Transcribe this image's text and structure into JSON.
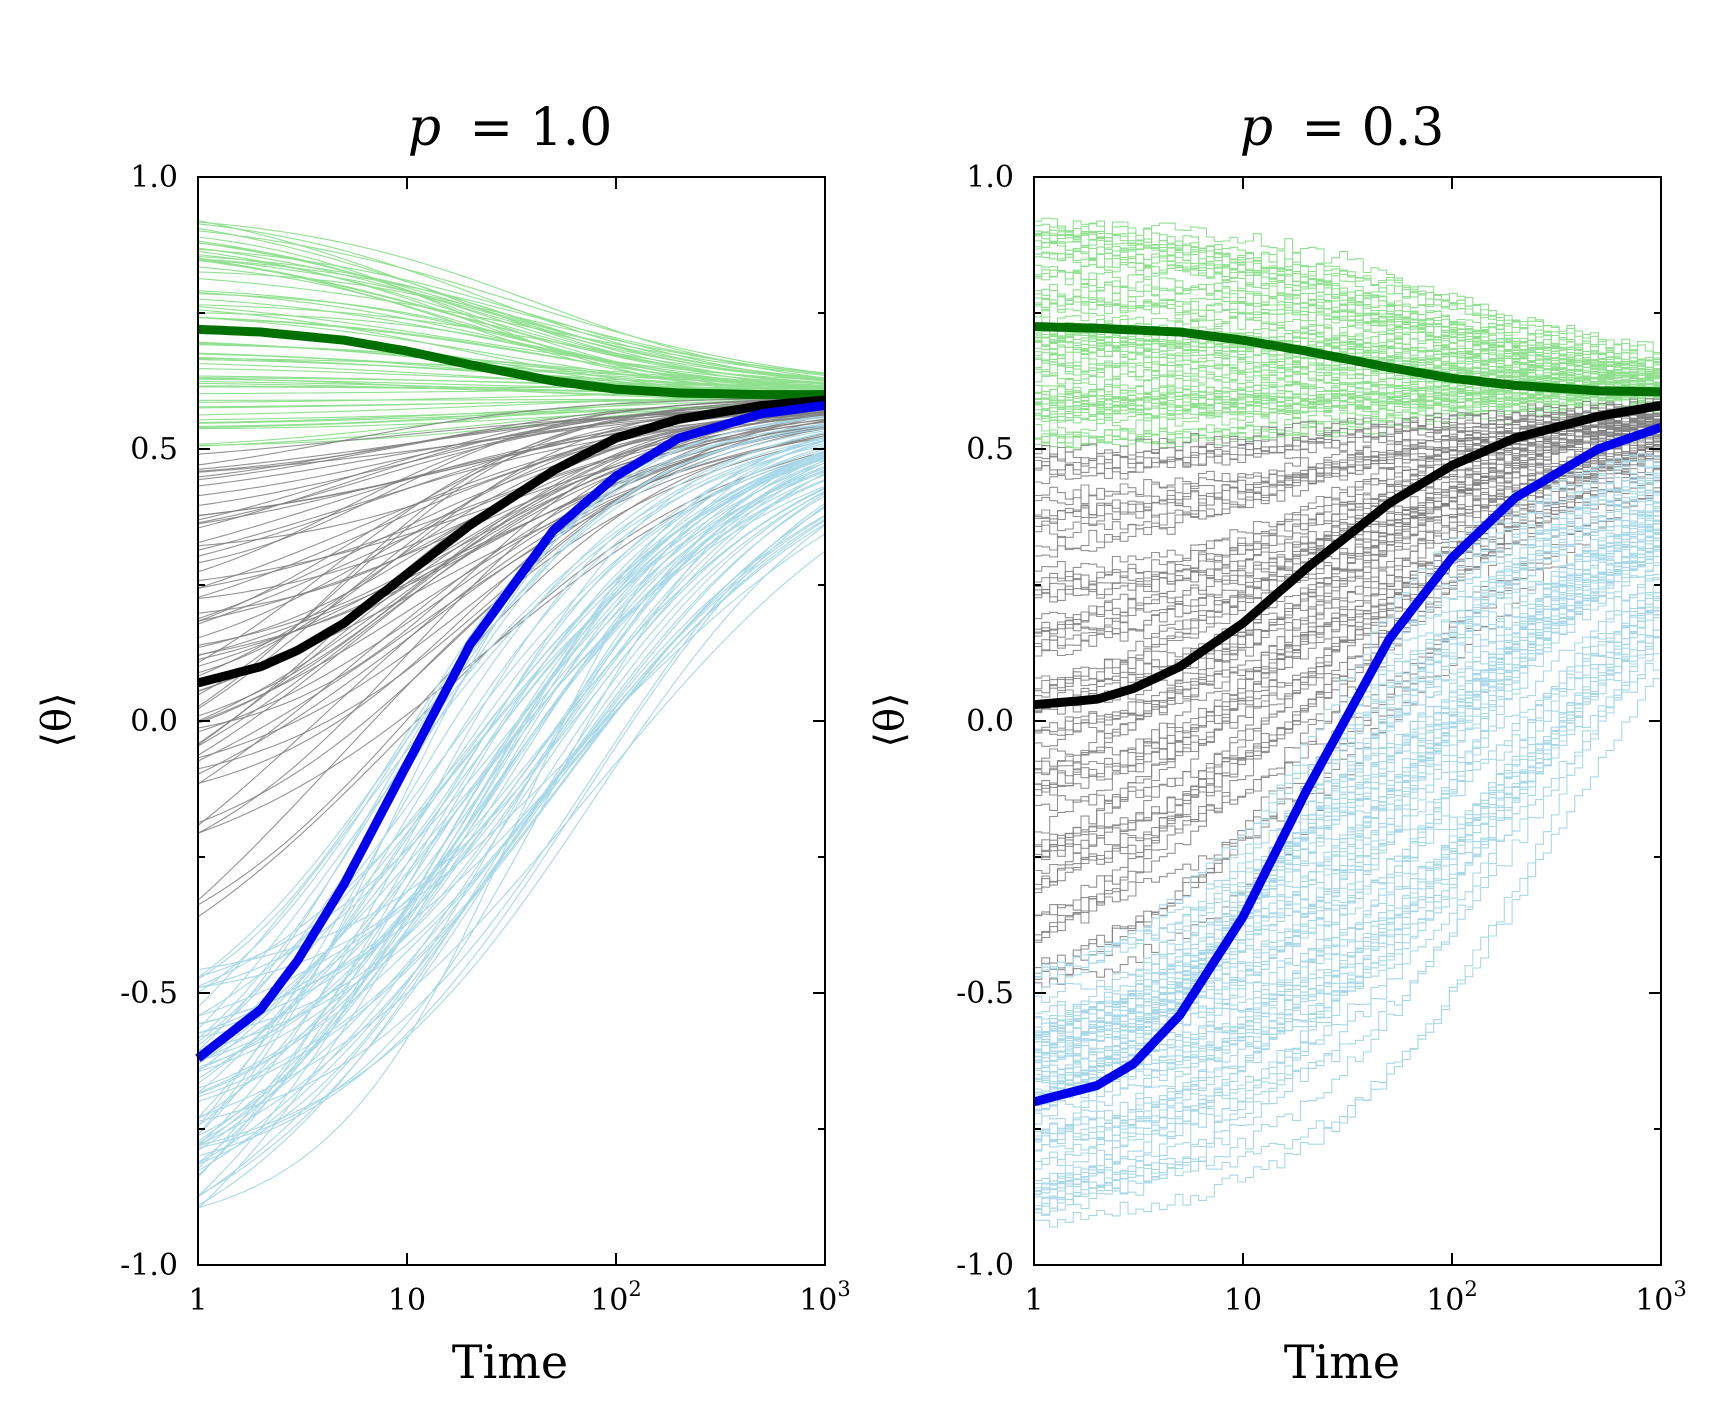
{
  "chart_data": [
    {
      "type": "line",
      "title": "p = 1.0",
      "title_var": "p",
      "title_value": "= 1.0",
      "xlabel": "Time",
      "ylabel": "⟨θ⟩",
      "xscale": "log",
      "xlim": [
        1,
        1000
      ],
      "ylim": [
        -1.0,
        1.0
      ],
      "xticks": [
        {
          "value": 1,
          "label": "1",
          "sup": ""
        },
        {
          "value": 10,
          "label": "10",
          "sup": ""
        },
        {
          "value": 100,
          "label": "10",
          "sup": "2"
        },
        {
          "value": 1000,
          "label": "10",
          "sup": "3"
        }
      ],
      "yticks": [
        {
          "value": 1.0,
          "label": "1.0"
        },
        {
          "value": 0.5,
          "label": "0.5"
        },
        {
          "value": 0.0,
          "label": "0.0"
        },
        {
          "value": -0.5,
          "label": "-0.5"
        },
        {
          "value": -1.0,
          "label": "-1.0"
        }
      ],
      "series": [
        {
          "name": "green mean",
          "color": "#007000",
          "x": [
            1,
            2,
            5,
            10,
            20,
            50,
            100,
            200,
            500,
            1000
          ],
          "y": [
            0.72,
            0.715,
            0.7,
            0.68,
            0.655,
            0.625,
            0.61,
            0.603,
            0.6,
            0.6
          ]
        },
        {
          "name": "black mean",
          "color": "#000000",
          "x": [
            1,
            2,
            3,
            5,
            10,
            20,
            50,
            100,
            200,
            500,
            1000
          ],
          "y": [
            0.07,
            0.1,
            0.13,
            0.18,
            0.27,
            0.36,
            0.46,
            0.52,
            0.555,
            0.58,
            0.59
          ]
        },
        {
          "name": "blue mean",
          "color": "#0000ee",
          "x": [
            1,
            2,
            3,
            5,
            10,
            20,
            50,
            100,
            200,
            500,
            1000
          ],
          "y": [
            -0.62,
            -0.53,
            -0.44,
            -0.3,
            -0.08,
            0.14,
            0.35,
            0.45,
            0.52,
            0.565,
            0.58
          ]
        }
      ],
      "ensembles": [
        {
          "name": "green trajectories",
          "color": "#90e090",
          "y0_range": [
            0.5,
            0.92
          ],
          "y_final": 0.6,
          "midpoint_range": [
            15,
            70
          ]
        },
        {
          "name": "grey trajectories",
          "color": "#808080",
          "y0_range": [
            -0.36,
            0.5
          ],
          "y_final": 0.59,
          "midpoint_range": [
            4,
            30
          ]
        },
        {
          "name": "light-blue trajectories",
          "color": "#a8d8e8",
          "y0_range": [
            -0.9,
            -0.45
          ],
          "y_final": 0.57,
          "midpoint_range": [
            6,
            80
          ]
        }
      ]
    },
    {
      "type": "line",
      "title": "p = 0.3",
      "title_var": "p",
      "title_value": "= 0.3",
      "xlabel": "Time",
      "ylabel": "⟨θ⟩",
      "xscale": "log",
      "xlim": [
        1,
        1000
      ],
      "ylim": [
        -1.0,
        1.0
      ],
      "xticks": [
        {
          "value": 1,
          "label": "1",
          "sup": ""
        },
        {
          "value": 10,
          "label": "10",
          "sup": ""
        },
        {
          "value": 100,
          "label": "10",
          "sup": "2"
        },
        {
          "value": 1000,
          "label": "10",
          "sup": "3"
        }
      ],
      "yticks": [
        {
          "value": 1.0,
          "label": "1.0"
        },
        {
          "value": 0.5,
          "label": "0.5"
        },
        {
          "value": 0.0,
          "label": "0.0"
        },
        {
          "value": -0.5,
          "label": "-0.5"
        },
        {
          "value": -1.0,
          "label": "-1.0"
        }
      ],
      "series": [
        {
          "name": "green mean",
          "color": "#007000",
          "x": [
            1,
            2,
            5,
            10,
            20,
            50,
            100,
            200,
            500,
            1000
          ],
          "y": [
            0.725,
            0.722,
            0.715,
            0.7,
            0.68,
            0.65,
            0.63,
            0.617,
            0.607,
            0.605
          ]
        },
        {
          "name": "black mean",
          "color": "#000000",
          "x": [
            1,
            2,
            3,
            5,
            10,
            20,
            50,
            100,
            200,
            500,
            1000
          ],
          "y": [
            0.03,
            0.04,
            0.06,
            0.1,
            0.18,
            0.28,
            0.4,
            0.47,
            0.52,
            0.56,
            0.58
          ]
        },
        {
          "name": "blue mean",
          "color": "#0000ee",
          "x": [
            1,
            2,
            3,
            5,
            10,
            20,
            50,
            100,
            200,
            500,
            1000
          ],
          "y": [
            -0.7,
            -0.67,
            -0.63,
            -0.54,
            -0.36,
            -0.13,
            0.15,
            0.3,
            0.41,
            0.5,
            0.54
          ]
        }
      ],
      "ensembles": [
        {
          "name": "green trajectories",
          "color": "#90e090",
          "y0_range": [
            0.5,
            0.92
          ],
          "y_final": 0.61,
          "midpoint_range": [
            30,
            250
          ]
        },
        {
          "name": "grey trajectories",
          "color": "#808080",
          "y0_range": [
            -0.5,
            0.5
          ],
          "y_final": 0.58,
          "midpoint_range": [
            8,
            90
          ]
        },
        {
          "name": "light-blue trajectories",
          "color": "#a8d8e8",
          "y0_range": [
            -0.92,
            -0.45
          ],
          "y_final": 0.5,
          "midpoint_range": [
            15,
            300
          ]
        }
      ]
    }
  ]
}
